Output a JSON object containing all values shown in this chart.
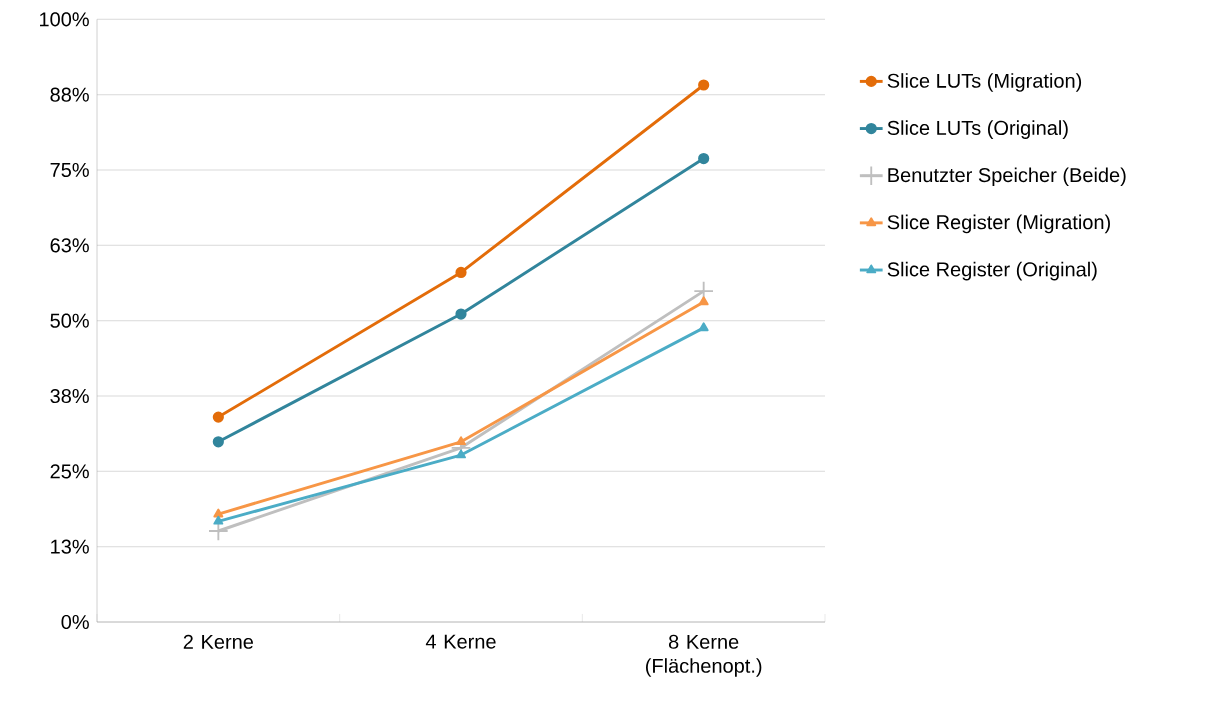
{
  "chart_data": {
    "type": "line",
    "categories": [
      "2 Kerne",
      "4 Kerne",
      "8 Kerne (Flächenopt.)"
    ],
    "series": [
      {
        "name": "Slice LUTs (Migration)",
        "color": "#e36c09",
        "marker": "circle",
        "values": [
          34.0,
          58.0,
          89.1
        ]
      },
      {
        "name": "Slice LUTs (Original)",
        "color": "#31859c",
        "marker": "circle",
        "values": [
          29.9,
          51.1,
          76.9
        ]
      },
      {
        "name": "Benutzter Speicher (Beide)",
        "color": "#bfbfbf",
        "marker": "cross",
        "values": [
          15.1,
          28.9,
          54.9
        ]
      },
      {
        "name": "Slice Register (Migration)",
        "color": "#f79646",
        "marker": "triangle",
        "values": [
          17.9,
          29.9,
          53.1
        ]
      },
      {
        "name": "Slice Register (Original)",
        "color": "#4bacc6",
        "marker": "triangle",
        "values": [
          16.7,
          27.7,
          48.8
        ]
      }
    ],
    "ylim": [
      0,
      100
    ],
    "yticks": [
      {
        "value": 0,
        "label": "0%"
      },
      {
        "value": 12.5,
        "label": "13%"
      },
      {
        "value": 25,
        "label": "25%"
      },
      {
        "value": 37.5,
        "label": "38%"
      },
      {
        "value": 50,
        "label": "50%"
      },
      {
        "value": 62.5,
        "label": "63%"
      },
      {
        "value": 75,
        "label": "75%"
      },
      {
        "value": 87.5,
        "label": "88%"
      },
      {
        "value": 100,
        "label": "100%"
      }
    ],
    "grid": "y",
    "legend": "right",
    "line_style": "solid"
  }
}
